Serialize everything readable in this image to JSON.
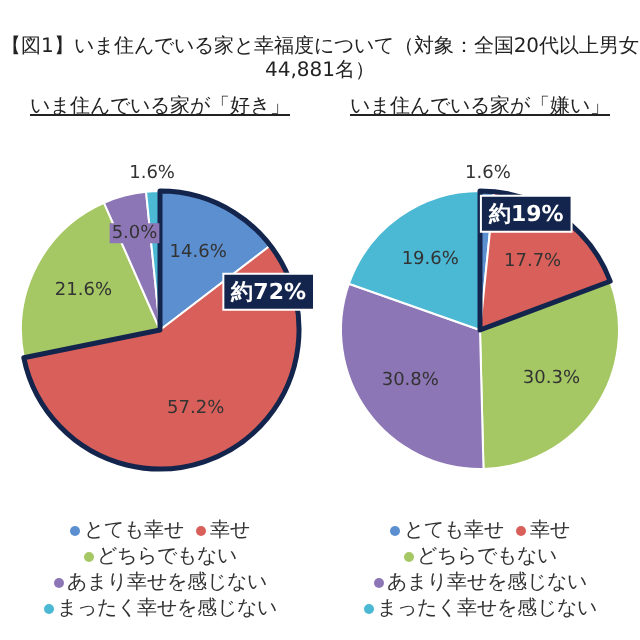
{
  "chart_data": [
    {
      "type": "pie",
      "title": "【図1】いま住んでいる家と幸福度について（対象：全国20代以上男女44,881名）",
      "subtitle": "いま住んでいる家が「好き」",
      "categories": [
        "とても幸せ",
        "幸せ",
        "どちらでもない",
        "あまり幸せを感じない",
        "まったく幸せを感じない"
      ],
      "values": [
        14.6,
        57.2,
        21.6,
        5.0,
        1.6
      ],
      "value_labels": [
        "14.6%",
        "57.2%",
        "21.6%",
        "5.0%",
        "1.6%"
      ],
      "colors": [
        "#5b8fd0",
        "#d9605a",
        "#a5c864",
        "#8d76b5",
        "#4bb8d4"
      ],
      "annotations": [
        "約72%"
      ],
      "legend": "bottom"
    },
    {
      "type": "pie",
      "subtitle": "いま住んでいる家が「嫌い」",
      "categories": [
        "とても幸せ",
        "幸せ",
        "どちらでもない",
        "あまり幸せを感じない",
        "まったく幸せを感じない"
      ],
      "values": [
        1.6,
        17.7,
        30.3,
        30.8,
        19.6
      ],
      "value_labels": [
        "1.6%",
        "17.7%",
        "30.3%",
        "30.8%",
        "19.6%"
      ],
      "colors": [
        "#5b8fd0",
        "#d9605a",
        "#a5c864",
        "#8d76b5",
        "#4bb8d4"
      ],
      "annotations": [
        "約19%"
      ],
      "legend": "bottom"
    }
  ]
}
